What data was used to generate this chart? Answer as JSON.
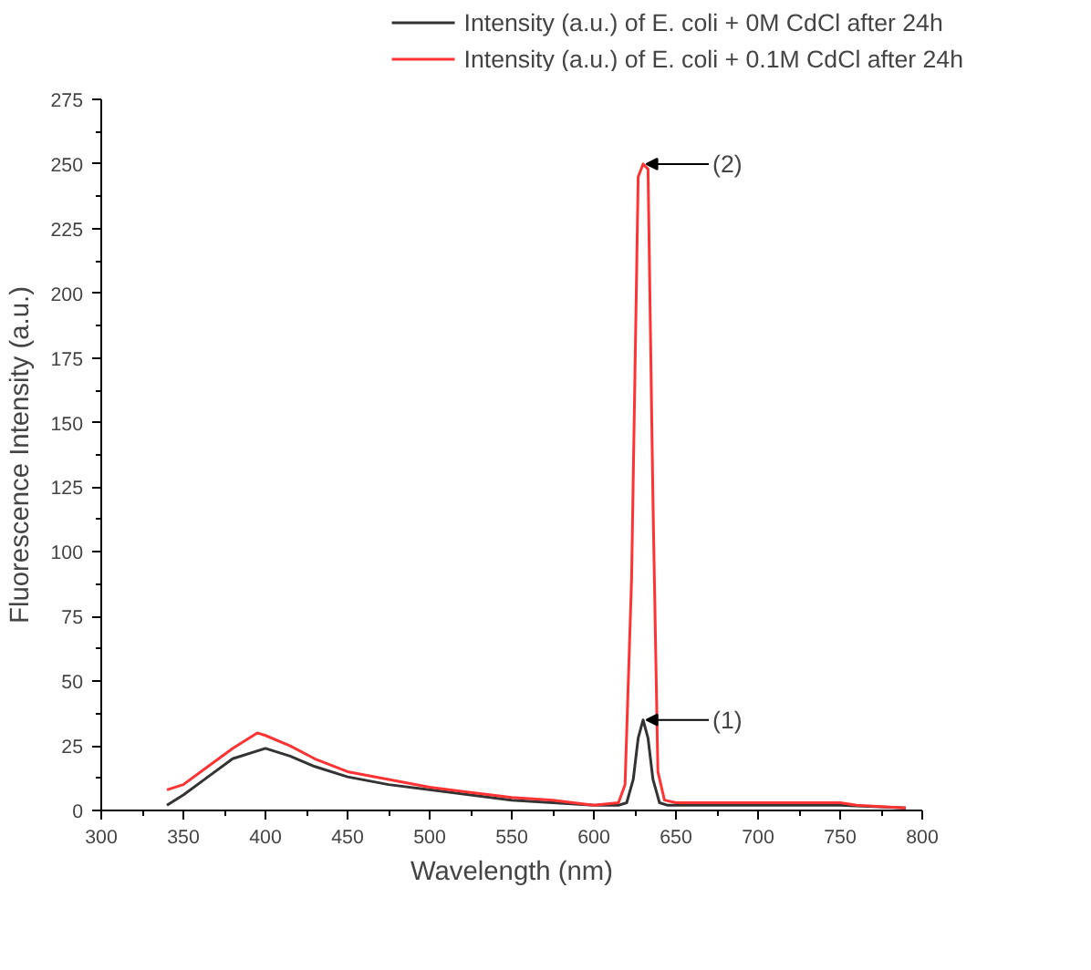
{
  "chart_data": {
    "type": "line",
    "xlabel": "Wavelength (nm)",
    "ylabel": "Fluorescence Intensity (a.u.)",
    "xlim": [
      300,
      800
    ],
    "xticks": [
      300,
      350,
      400,
      450,
      500,
      550,
      600,
      650,
      700,
      750,
      800
    ],
    "ylim": [
      0,
      275
    ],
    "yticks": [
      0,
      25,
      50,
      75,
      100,
      125,
      150,
      175,
      200,
      225,
      250,
      275
    ],
    "grid": false,
    "legend": "top",
    "marker": "none",
    "line_style": "solid",
    "annotations": [
      {
        "text": "(1)",
        "x": 630,
        "y": 35
      },
      {
        "text": "(2)",
        "x": 630,
        "y": 250
      }
    ],
    "series": [
      {
        "name": "Intensity (a.u.) of E. coli + 0M CdCl after 24h",
        "color": "#333333",
        "x": [
          340,
          350,
          365,
          380,
          400,
          415,
          430,
          450,
          475,
          500,
          525,
          550,
          575,
          600,
          615,
          620,
          624,
          627,
          630,
          633,
          636,
          640,
          645,
          675,
          700,
          750,
          790
        ],
        "values": [
          2,
          6,
          13,
          20,
          24,
          21,
          17,
          13,
          10,
          8,
          6,
          4,
          3,
          2,
          2,
          3,
          12,
          28,
          35,
          28,
          12,
          3,
          2,
          2,
          2,
          2,
          1
        ]
      },
      {
        "name": "Intensity (a.u.) of E. coli + 0.1M CdCl after 24h",
        "color": "#ff3333",
        "x": [
          340,
          350,
          365,
          380,
          395,
          400,
          415,
          430,
          450,
          475,
          500,
          525,
          550,
          575,
          600,
          615,
          619,
          623,
          627,
          630,
          633,
          636,
          639,
          643,
          650,
          700,
          750,
          760,
          790
        ],
        "values": [
          8,
          10,
          17,
          24,
          30,
          29,
          25,
          20,
          15,
          12,
          9,
          7,
          5,
          4,
          2,
          3,
          10,
          90,
          245,
          250,
          248,
          120,
          15,
          4,
          3,
          3,
          3,
          2,
          1
        ]
      }
    ]
  }
}
